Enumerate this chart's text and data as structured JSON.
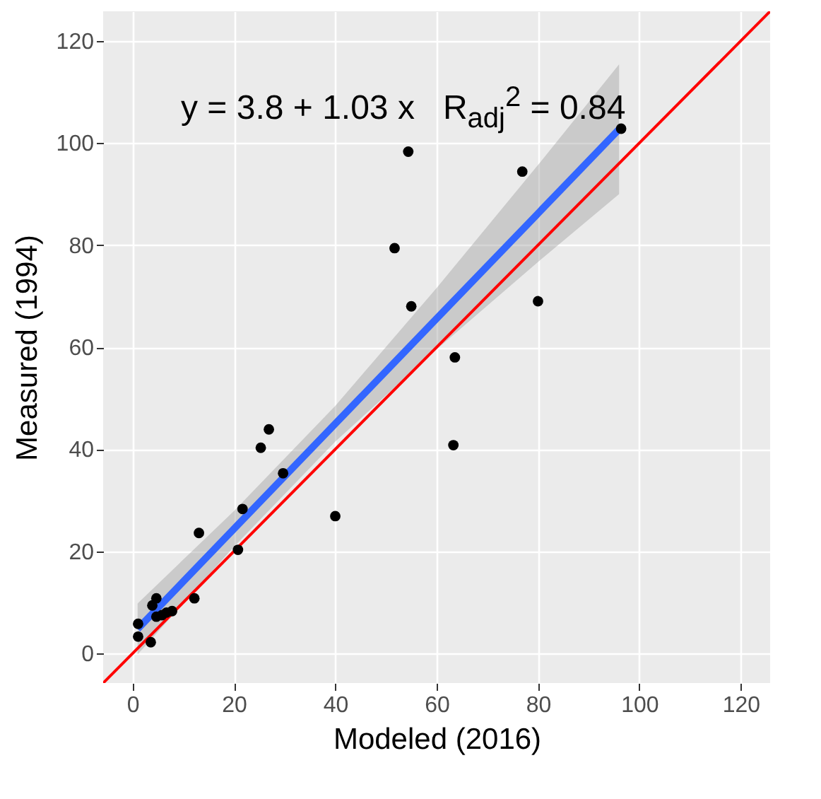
{
  "chart_data": {
    "type": "scatter",
    "xlabel": "Modeled (2016)",
    "ylabel": "Measured (1994)",
    "annotations": [
      "y = 3.8 + 1.03 x   R$_{adj}$$^{2}$ = 0.84"
    ],
    "xlim": [
      -5.8,
      125.8
    ],
    "ylim": [
      -5.8,
      125.8
    ],
    "xticks": [
      0,
      20,
      40,
      60,
      80,
      100,
      120
    ],
    "yticks": [
      0,
      20,
      40,
      60,
      80,
      100,
      120
    ],
    "grid": true,
    "series": [
      {
        "type": "line",
        "marker": "none",
        "color": "#3366ff",
        "x": [
          1,
          20,
          40,
          60,
          80,
          96
        ],
        "values": [
          4.8,
          24.4,
          45,
          65.6,
          86.2,
          102.7
        ],
        "lower": [
          -0.2,
          20.9,
          41.5,
          59.6,
          76.7,
          90.0
        ],
        "upper": [
          9.8,
          27.9,
          48.5,
          71.6,
          95.7,
          115.4
        ]
      },
      {
        "type": "line",
        "marker": "none",
        "color": "#ff0000",
        "x": [
          -5.8,
          125.8
        ],
        "values": [
          -5.8,
          125.8
        ]
      },
      {
        "marker": "circle",
        "color": "#000000",
        "x": [
          96.4,
          54.4,
          76.9,
          51.7,
          55,
          80,
          63.6,
          63.3,
          26.9,
          25.3,
          29.7,
          40,
          21.7,
          13.1,
          20.8,
          12.2,
          4.7,
          3.9,
          7.8,
          6.7,
          5.8,
          1.1,
          1.1,
          3.6,
          4.7
        ],
        "values": [
          102.8,
          98.3,
          94.4,
          79.4,
          68,
          69,
          58,
          40.8,
          43.9,
          40.3,
          35.3,
          26.9,
          28.3,
          23.6,
          20.3,
          10.8,
          10.8,
          9.4,
          8.3,
          8,
          7.5,
          5.8,
          3.3,
          2.2,
          7.2
        ]
      }
    ]
  }
}
